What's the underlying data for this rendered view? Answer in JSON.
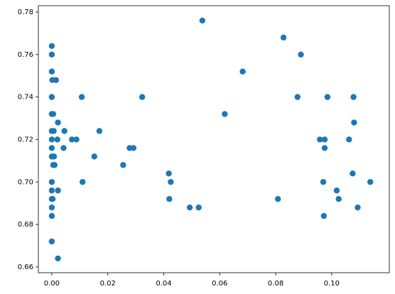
{
  "chart_data": {
    "type": "scatter",
    "color": "#1f77b4",
    "x": [
      0.0,
      0.0,
      0.0,
      0.0002,
      0.0015,
      0.0,
      0.0,
      0.0005,
      0.0,
      0.0007,
      0.0,
      0.002,
      0.0,
      0.0,
      0.0008,
      0.0005,
      0.001,
      0.0,
      0.0,
      0.0022,
      0.0,
      0.0003,
      0.0,
      0.0,
      0.0,
      0.0022,
      0.0022,
      0.0045,
      0.0042,
      0.0072,
      0.0088,
      0.0107,
      0.011,
      0.0152,
      0.017,
      0.0255,
      0.0278,
      0.0292,
      0.0323,
      0.0418,
      0.042,
      0.0425,
      0.0493,
      0.0525,
      0.0538,
      0.0618,
      0.0682,
      0.0808,
      0.0828,
      0.0878,
      0.089,
      0.0958,
      0.097,
      0.0972,
      0.0975,
      0.0975,
      0.0985,
      0.1018,
      0.1025,
      0.1062,
      0.1075,
      0.1078,
      0.108,
      0.1093,
      0.1138
    ],
    "values": [
      0.764,
      0.76,
      0.752,
      0.748,
      0.748,
      0.74,
      0.732,
      0.732,
      0.724,
      0.724,
      0.72,
      0.72,
      0.716,
      0.712,
      0.712,
      0.708,
      0.708,
      0.7,
      0.696,
      0.696,
      0.692,
      0.692,
      0.688,
      0.684,
      0.672,
      0.664,
      0.728,
      0.724,
      0.716,
      0.72,
      0.72,
      0.74,
      0.7,
      0.712,
      0.724,
      0.708,
      0.716,
      0.716,
      0.74,
      0.704,
      0.692,
      0.7,
      0.688,
      0.688,
      0.776,
      0.732,
      0.752,
      0.692,
      0.768,
      0.74,
      0.76,
      0.72,
      0.7,
      0.684,
      0.72,
      0.716,
      0.74,
      0.696,
      0.692,
      0.72,
      0.704,
      0.74,
      0.728,
      0.688,
      0.7
    ],
    "xlim": [
      -0.0048,
      0.1206
    ],
    "ylim": [
      0.6573,
      0.783
    ],
    "xticks": [
      {
        "value": 0,
        "label": "0.00"
      },
      0.02,
      0.04,
      0.06,
      0.08,
      {
        "value": 0.1,
        "label": "0.10"
      }
    ],
    "yticks": [
      0.66,
      0.68,
      {
        "value": 0.7,
        "label": "0.70"
      },
      0.72,
      0.74,
      0.76,
      0.78
    ]
  }
}
